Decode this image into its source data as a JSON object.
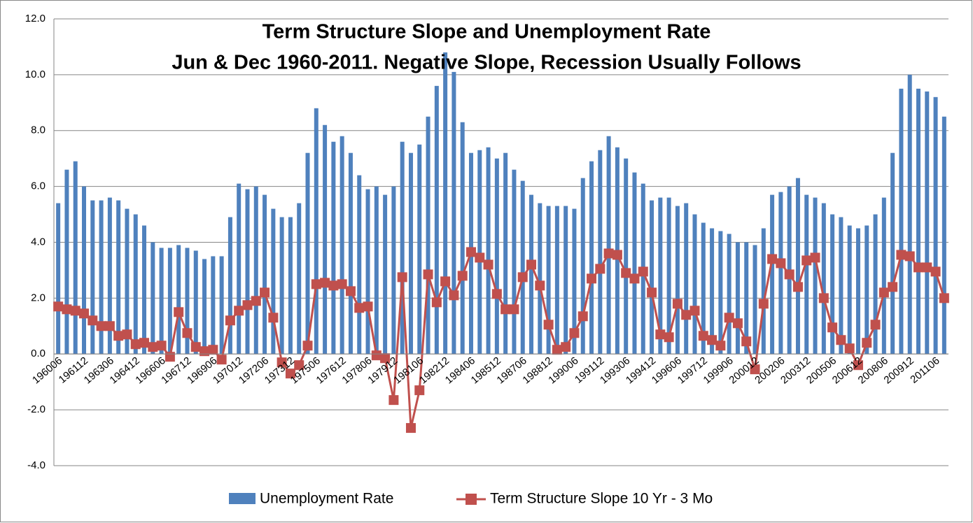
{
  "chart_data": {
    "type": "bar_line",
    "title": [
      "Term Structure Slope and Unemployment Rate",
      "Jun & Dec 1960-2011.  Negative Slope, Recession  Usually Follows"
    ],
    "categories": [
      "196006",
      null,
      null,
      "196112",
      null,
      null,
      "196306",
      null,
      null,
      "196412",
      null,
      null,
      "196606",
      null,
      null,
      "196712",
      null,
      null,
      "196906",
      null,
      null,
      "197012",
      null,
      null,
      "197206",
      null,
      null,
      "197312",
      null,
      null,
      "197506",
      null,
      null,
      "197612",
      null,
      null,
      "197806",
      null,
      null,
      "197912",
      null,
      null,
      "198106",
      null,
      null,
      "198212",
      null,
      null,
      "198406",
      null,
      null,
      "198512",
      null,
      null,
      "198706",
      null,
      null,
      "198812",
      null,
      null,
      "199006",
      null,
      null,
      "199112",
      null,
      null,
      "199306",
      null,
      null,
      "199412",
      null,
      null,
      "199606",
      null,
      null,
      "199712",
      null,
      null,
      "199906",
      null,
      null,
      "200012",
      null,
      null,
      "200206",
      null,
      null,
      "200312",
      null,
      null,
      "200506",
      null,
      null,
      "200612",
      null,
      null,
      "200806",
      null,
      null,
      "200912",
      null,
      null,
      "201106",
      null
    ],
    "series": [
      {
        "name": "Unemployment Rate",
        "type": "bar",
        "color": "#4f81bd",
        "values": [
          5.4,
          6.6,
          6.9,
          6.0,
          5.5,
          5.5,
          5.6,
          5.5,
          5.2,
          5.0,
          4.6,
          4.0,
          3.8,
          3.8,
          3.9,
          3.8,
          3.7,
          3.4,
          3.5,
          3.5,
          4.9,
          6.1,
          5.9,
          6.0,
          5.7,
          5.2,
          4.9,
          4.9,
          5.4,
          7.2,
          8.8,
          8.2,
          7.6,
          7.8,
          7.2,
          6.4,
          5.9,
          6.0,
          5.7,
          6.0,
          7.6,
          7.2,
          7.5,
          8.5,
          9.6,
          10.8,
          10.1,
          8.3,
          7.2,
          7.3,
          7.4,
          7.0,
          7.2,
          6.6,
          6.2,
          5.7,
          5.4,
          5.3,
          5.3,
          5.3,
          5.2,
          6.3,
          6.9,
          7.3,
          7.8,
          7.4,
          7.0,
          6.5,
          6.1,
          5.5,
          5.6,
          5.6,
          5.3,
          5.4,
          5.0,
          4.7,
          4.5,
          4.4,
          4.3,
          4.0,
          4.0,
          3.9,
          4.5,
          5.7,
          5.8,
          6.0,
          6.3,
          5.7,
          5.6,
          5.4,
          5.0,
          4.9,
          4.6,
          4.5,
          4.6,
          5.0,
          5.6,
          7.2,
          9.5,
          10.0,
          9.5,
          9.4,
          9.2,
          8.5
        ]
      },
      {
        "name": "Term Structure Slope 10 Yr - 3 Mo",
        "type": "line",
        "color": "#c0504d",
        "values": [
          1.7,
          1.6,
          1.55,
          1.45,
          1.2,
          1.0,
          1.0,
          0.65,
          0.7,
          0.35,
          0.4,
          0.25,
          0.3,
          -0.1,
          1.5,
          0.75,
          0.25,
          0.1,
          0.15,
          -0.2,
          1.2,
          1.55,
          1.75,
          1.9,
          2.2,
          1.3,
          -0.3,
          -0.7,
          -0.4,
          0.3,
          2.5,
          2.55,
          2.45,
          2.5,
          2.25,
          1.65,
          1.7,
          -0.05,
          -0.15,
          -1.65,
          2.75,
          -2.65,
          -1.3,
          2.85,
          1.85,
          2.6,
          2.1,
          2.8,
          3.65,
          3.45,
          3.2,
          2.15,
          1.6,
          1.6,
          2.75,
          3.2,
          2.45,
          1.05,
          0.15,
          0.25,
          0.75,
          1.35,
          2.7,
          3.05,
          3.6,
          3.55,
          2.9,
          2.7,
          2.95,
          2.2,
          0.7,
          0.6,
          1.8,
          1.4,
          1.55,
          0.65,
          0.5,
          0.3,
          1.3,
          1.1,
          0.45,
          -0.55,
          1.8,
          3.4,
          3.25,
          2.85,
          2.4,
          3.35,
          3.45,
          2.0,
          0.95,
          0.5,
          0.2,
          -0.4,
          0.4,
          1.05,
          2.2,
          2.4,
          3.55,
          3.5,
          3.1,
          3.1,
          2.95,
          2.0
        ]
      }
    ],
    "ylim": [
      -4,
      12
    ],
    "yticks": [
      {
        "value": -4,
        "label": "-4.0"
      },
      {
        "value": -2,
        "label": "-2.0"
      },
      {
        "value": 0,
        "label": "0.0"
      },
      {
        "value": 2,
        "label": "2.0"
      },
      {
        "value": 4,
        "label": "4.0"
      },
      {
        "value": 6,
        "label": "6.0"
      },
      {
        "value": 8,
        "label": "8.0"
      },
      {
        "value": 10,
        "label": "10.0"
      },
      {
        "value": 12,
        "label": "12.0"
      }
    ],
    "grid": true,
    "legend": "bottom"
  }
}
